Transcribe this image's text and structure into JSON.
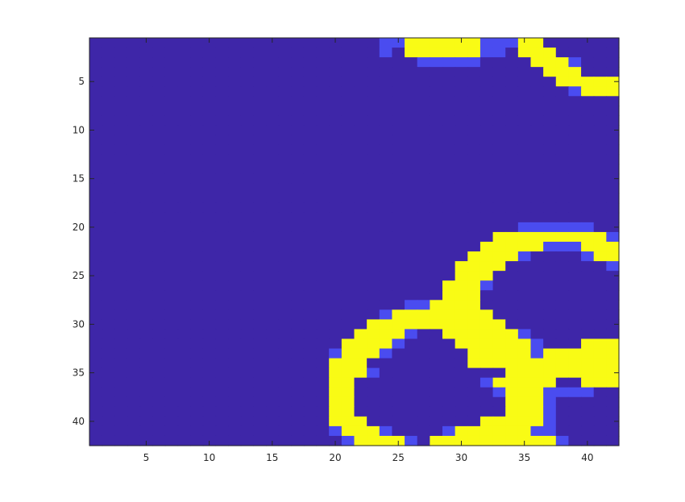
{
  "chart_data": {
    "type": "heatmap",
    "title": "",
    "xlabel": "",
    "ylabel": "",
    "xlim": [
      0.5,
      42.5
    ],
    "ylim": [
      0.5,
      42.5
    ],
    "y_direction": "reversed",
    "x_ticks": [
      5,
      10,
      15,
      20,
      25,
      30,
      35,
      40
    ],
    "y_ticks": [
      5,
      10,
      15,
      20,
      25,
      30,
      35,
      40
    ],
    "x_tick_labels": [
      "5",
      "10",
      "15",
      "20",
      "25",
      "30",
      "35",
      "40"
    ],
    "y_tick_labels": [
      "5",
      "10",
      "15",
      "20",
      "25",
      "30",
      "35",
      "40"
    ],
    "colormap": "parula",
    "color_low": "#3e26a8",
    "color_mid": "#4a4cf0",
    "color_high": "#f9fb15",
    "grid": false,
    "matrix_size": [
      42,
      42
    ],
    "yellow_runs": [
      [
        1,
        [
          [
            26,
            31
          ],
          [
            35,
            36
          ]
        ]
      ],
      [
        2,
        [
          [
            26,
            31
          ],
          [
            35,
            37
          ]
        ]
      ],
      [
        3,
        [
          [
            36,
            38
          ]
        ]
      ],
      [
        4,
        [
          [
            37,
            39
          ]
        ]
      ],
      [
        5,
        [
          [
            38,
            42
          ]
        ]
      ],
      [
        6,
        [
          [
            40,
            42
          ]
        ]
      ],
      [
        21,
        [
          [
            33,
            41
          ]
        ]
      ],
      [
        22,
        [
          [
            32,
            36
          ],
          [
            40,
            42
          ]
        ]
      ],
      [
        23,
        [
          [
            31,
            34
          ],
          [
            41,
            42
          ]
        ]
      ],
      [
        24,
        [
          [
            30,
            33
          ]
        ]
      ],
      [
        25,
        [
          [
            30,
            32
          ]
        ]
      ],
      [
        26,
        [
          [
            29,
            31
          ]
        ]
      ],
      [
        27,
        [
          [
            29,
            31
          ]
        ]
      ],
      [
        28,
        [
          [
            28,
            31
          ]
        ]
      ],
      [
        29,
        [
          [
            25,
            32
          ]
        ]
      ],
      [
        30,
        [
          [
            23,
            33
          ]
        ]
      ],
      [
        31,
        [
          [
            22,
            25
          ],
          [
            29,
            34
          ]
        ]
      ],
      [
        32,
        [
          [
            21,
            24
          ],
          [
            30,
            35
          ],
          [
            40,
            42
          ]
        ]
      ],
      [
        33,
        [
          [
            21,
            23
          ],
          [
            31,
            35
          ],
          [
            37,
            42
          ]
        ]
      ],
      [
        34,
        [
          [
            20,
            22
          ],
          [
            31,
            42
          ]
        ]
      ],
      [
        35,
        [
          [
            20,
            22
          ],
          [
            34,
            42
          ]
        ]
      ],
      [
        36,
        [
          [
            20,
            21
          ],
          [
            33,
            37
          ],
          [
            40,
            42
          ]
        ]
      ],
      [
        37,
        [
          [
            20,
            21
          ],
          [
            34,
            36
          ]
        ]
      ],
      [
        38,
        [
          [
            20,
            21
          ],
          [
            34,
            36
          ]
        ]
      ],
      [
        39,
        [
          [
            20,
            21
          ],
          [
            34,
            36
          ]
        ]
      ],
      [
        40,
        [
          [
            20,
            22
          ],
          [
            32,
            36
          ]
        ]
      ],
      [
        41,
        [
          [
            21,
            23
          ],
          [
            30,
            35
          ]
        ]
      ],
      [
        42,
        [
          [
            22,
            25
          ],
          [
            28,
            37
          ]
        ]
      ]
    ],
    "mid_cells": [
      [
        24,
        1
      ],
      [
        25,
        1
      ],
      [
        24,
        2
      ],
      [
        32,
        1
      ],
      [
        33,
        1
      ],
      [
        34,
        1
      ],
      [
        32,
        2
      ],
      [
        33,
        2
      ],
      [
        27,
        3
      ],
      [
        28,
        3
      ],
      [
        29,
        3
      ],
      [
        30,
        3
      ],
      [
        31,
        3
      ],
      [
        39,
        3
      ],
      [
        39,
        4
      ],
      [
        40,
        5
      ],
      [
        39,
        6
      ],
      [
        35,
        20
      ],
      [
        36,
        20
      ],
      [
        37,
        20
      ],
      [
        38,
        20
      ],
      [
        39,
        20
      ],
      [
        40,
        20
      ],
      [
        33,
        21
      ],
      [
        32,
        22
      ],
      [
        42,
        21
      ],
      [
        37,
        22
      ],
      [
        38,
        22
      ],
      [
        39,
        22
      ],
      [
        35,
        23
      ],
      [
        31,
        24
      ],
      [
        40,
        23
      ],
      [
        42,
        24
      ],
      [
        30,
        26
      ],
      [
        29,
        27
      ],
      [
        32,
        26
      ],
      [
        28,
        28
      ],
      [
        27,
        28
      ],
      [
        26,
        28
      ],
      [
        25,
        29
      ],
      [
        24,
        29
      ],
      [
        23,
        30
      ],
      [
        22,
        31
      ],
      [
        26,
        31
      ],
      [
        30,
        31
      ],
      [
        21,
        32
      ],
      [
        25,
        32
      ],
      [
        30,
        32
      ],
      [
        35,
        31
      ],
      [
        36,
        32
      ],
      [
        20,
        33
      ],
      [
        24,
        33
      ],
      [
        36,
        33
      ],
      [
        37,
        33
      ],
      [
        38,
        33
      ],
      [
        20,
        35
      ],
      [
        23,
        35
      ],
      [
        32,
        36
      ],
      [
        33,
        37
      ],
      [
        34,
        38
      ],
      [
        20,
        37
      ],
      [
        20,
        38
      ],
      [
        20,
        39
      ],
      [
        20,
        40
      ],
      [
        20,
        41
      ],
      [
        37,
        37
      ],
      [
        38,
        37
      ],
      [
        39,
        37
      ],
      [
        40,
        37
      ],
      [
        41,
        36
      ],
      [
        42,
        36
      ],
      [
        37,
        38
      ],
      [
        37,
        39
      ],
      [
        37,
        40
      ],
      [
        36,
        41
      ],
      [
        37,
        41
      ],
      [
        38,
        42
      ],
      [
        22,
        40
      ],
      [
        23,
        41
      ],
      [
        24,
        41
      ],
      [
        25,
        42
      ],
      [
        26,
        42
      ],
      [
        29,
        41
      ],
      [
        30,
        41
      ],
      [
        31,
        41
      ],
      [
        21,
        42
      ]
    ]
  }
}
